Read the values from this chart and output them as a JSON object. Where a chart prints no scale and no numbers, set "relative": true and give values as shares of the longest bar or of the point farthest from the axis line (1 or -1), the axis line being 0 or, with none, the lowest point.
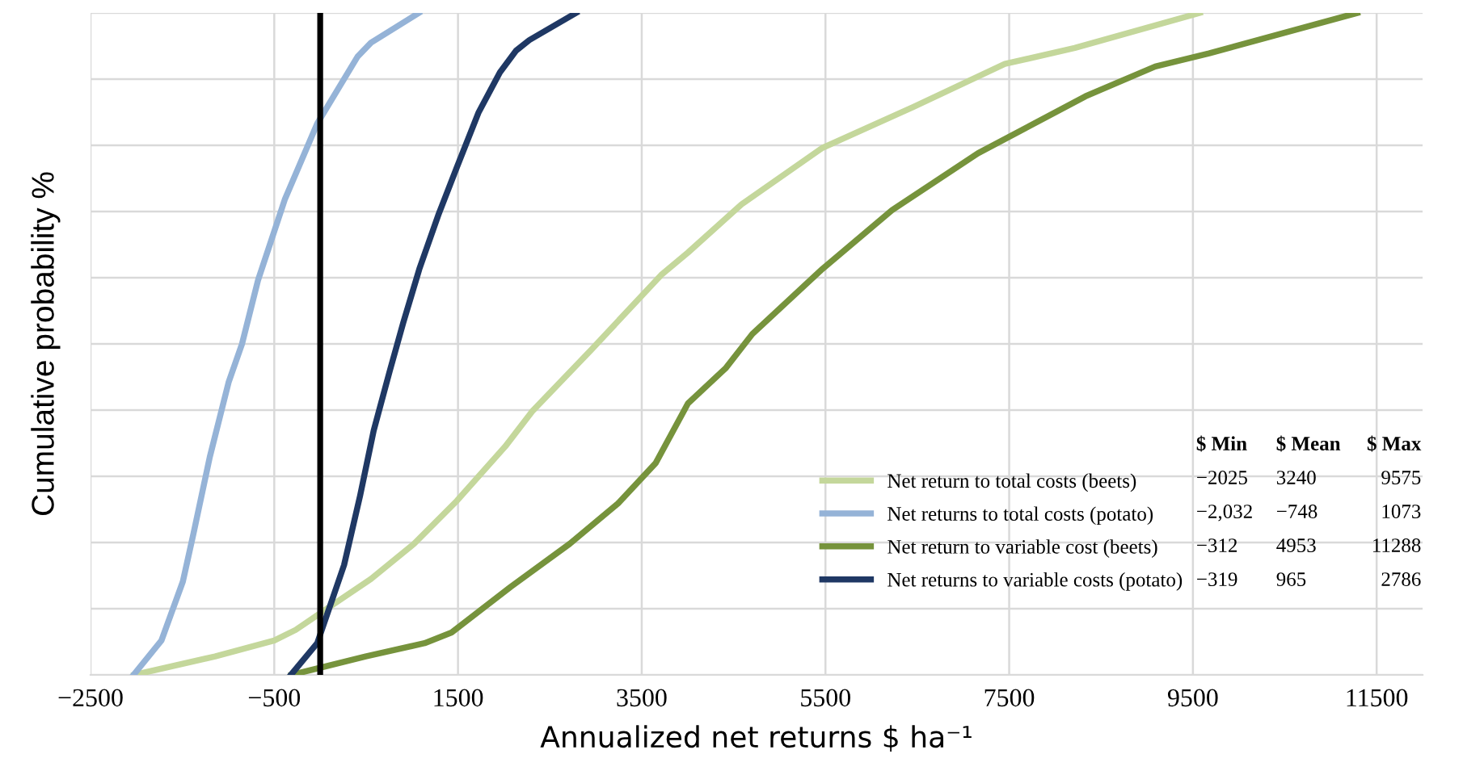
{
  "chart_data": {
    "type": "line",
    "relative": true,
    "xlabel": "Annualized net returns $ ha⁻¹",
    "ylabel": "Cumulative probability %",
    "xlim": [
      -2500,
      12000
    ],
    "xticks": [
      {
        "value": -2500,
        "label": "−2500"
      },
      {
        "value": -500,
        "label": "−500"
      },
      1500,
      3500,
      5500,
      7500,
      9500,
      11500
    ],
    "grid": true,
    "legend": "bottom right",
    "line_style": "solid",
    "marker": "none",
    "ref_lines": [
      {
        "axis": "x",
        "value": 0,
        "color": "#000000",
        "line_style": "solid"
      }
    ],
    "annotations": [
      "$ Min",
      "$ Mean",
      "$ Max",
      "−2025",
      "3240",
      "9575",
      "−2,032",
      "−748",
      "1073",
      "−312",
      "4953",
      "11288",
      "−319",
      "965",
      "2786"
    ],
    "series": [
      {
        "name": "Net return to total costs (beets)",
        "color": "#c4d79b",
        "x": [
          -2025,
          -1144,
          -500,
          -267,
          84,
          553,
          1021,
          1488,
          2014,
          2307,
          2950,
          3711,
          4003,
          4588,
          5465,
          6459,
          7453,
          8214,
          9575
        ],
        "values": [
          0,
          0.028,
          0.052,
          0.068,
          0.101,
          0.145,
          0.198,
          0.263,
          0.345,
          0.398,
          0.491,
          0.604,
          0.638,
          0.711,
          0.796,
          0.858,
          0.923,
          0.947,
          1
        ]
      },
      {
        "name": "Net returns to total costs (potato)",
        "color": "#95b3d7",
        "x": [
          -2032,
          -1728,
          -1495,
          -1377,
          -1202,
          -997,
          -851,
          -675,
          -383,
          -32,
          407,
          553,
          1073
        ],
        "values": [
          0,
          0.052,
          0.141,
          0.215,
          0.329,
          0.442,
          0.5,
          0.597,
          0.719,
          0.833,
          0.934,
          0.955,
          1
        ]
      },
      {
        "name": "Net return to variable cost (beets)",
        "color": "#76933c",
        "x": [
          -312,
          495,
          1137,
          1430,
          2073,
          2716,
          3242,
          3652,
          4003,
          4412,
          4704,
          5465,
          6224,
          7160,
          8330,
          9090,
          9675,
          11288
        ],
        "values": [
          0,
          0.028,
          0.048,
          0.064,
          0.133,
          0.198,
          0.259,
          0.32,
          0.41,
          0.463,
          0.515,
          0.613,
          0.702,
          0.788,
          0.874,
          0.919,
          0.939,
          1
        ]
      },
      {
        "name": "Net returns to variable costs (potato)",
        "color": "#1f3864",
        "x": [
          -319,
          -32,
          260,
          435,
          582,
          757,
          904,
          1079,
          1284,
          1488,
          1722,
          1956,
          2132,
          2277,
          2786
        ],
        "values": [
          0,
          0.048,
          0.166,
          0.271,
          0.369,
          0.459,
          0.532,
          0.613,
          0.694,
          0.767,
          0.849,
          0.91,
          0.943,
          0.959,
          1
        ]
      }
    ]
  }
}
